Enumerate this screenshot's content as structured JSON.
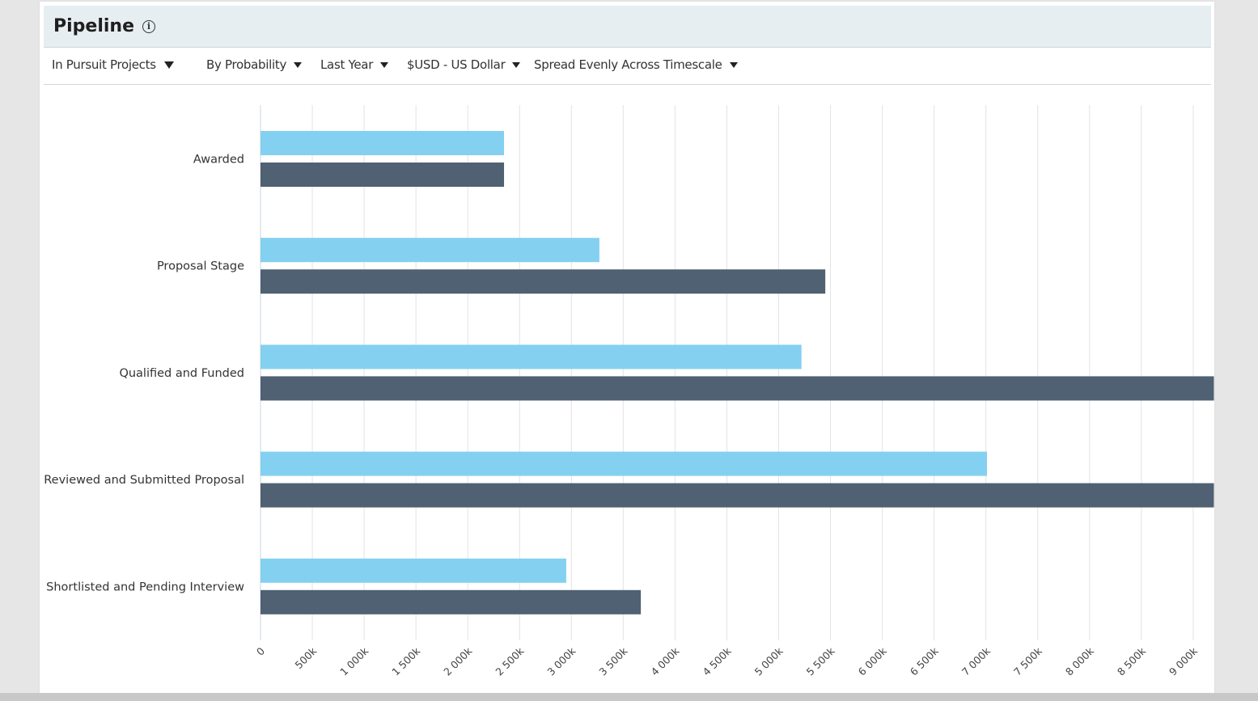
{
  "widget": {
    "title": "Pipeline",
    "info_icon": "info-icon",
    "filters": [
      {
        "label": "In Pursuit Projects"
      },
      {
        "label": "By Probability"
      },
      {
        "label": "Last Year"
      },
      {
        "label": "$USD - US Dollar"
      },
      {
        "label": "Spread Evenly Across Timescale"
      }
    ]
  },
  "colors": {
    "series_light": "#84d0f1",
    "series_dark": "#4f6172",
    "grid": "#e3e3e3",
    "header_bg": "#e7eef2"
  },
  "chart_data": {
    "type": "bar",
    "orientation": "horizontal",
    "categories": [
      "Awarded",
      "Proposal Stage",
      "Qualified and Funded",
      "Reviewed and Submitted Proposal",
      "Shortlisted and Pending Interview"
    ],
    "series": [
      {
        "values": [
          2350,
          3270,
          5220,
          7010,
          2950
        ]
      },
      {
        "values": [
          2350,
          5450,
          9200,
          9200,
          3670
        ]
      }
    ],
    "x_ticks": [
      "0",
      "500k",
      "1 000k",
      "1 500k",
      "2 000k",
      "2 500k",
      "3 000k",
      "3 500k",
      "4 000k",
      "4 500k",
      "5 000k",
      "5 500k",
      "6 000k",
      "6 500k",
      "7 000k",
      "7 500k",
      "8 000k",
      "8 500k",
      "9 000k"
    ],
    "xlim": [
      0,
      9200
    ],
    "units": "thousands USD",
    "grid": true,
    "legend": "none"
  }
}
